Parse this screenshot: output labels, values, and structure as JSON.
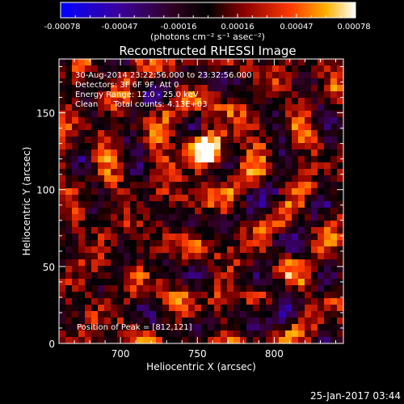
{
  "chart_data": {
    "type": "heatmap",
    "title": "Reconstructed RHESSI Image",
    "xlabel": "Heliocentric X (arcsec)",
    "ylabel": "Heliocentric Y (arcsec)",
    "xlim": [
      660,
      845
    ],
    "ylim": [
      0,
      185
    ],
    "x_ticks": [
      700,
      750,
      800
    ],
    "y_ticks": [
      0,
      50,
      100,
      150
    ],
    "colorbar": {
      "ticks": [
        "-0.00078",
        "-0.00047",
        "-0.00016",
        "0.00016",
        "0.00047",
        "0.00078"
      ],
      "range": [
        -0.00078,
        0.00078
      ],
      "unit_label": "(photons cm⁻² s⁻¹ asec⁻²)"
    },
    "annotations": [
      "30-Aug-2014 23:22:56.000 to 23:32:56.000",
      "Detectors: 3F 6F 9F, Att 0",
      "Energy Range: 12.0 - 25.0 keV",
      "Clean      Total counts: 4.13E+03"
    ],
    "peak_label": "Position of Peak = [812,121]",
    "peak_x": 812,
    "peak_y": 121,
    "bright_source_x": 756,
    "bright_source_y": 125,
    "dark_source_x": 793,
    "dark_source_y": 25,
    "footer": "25-Jan-2017 03:44"
  }
}
